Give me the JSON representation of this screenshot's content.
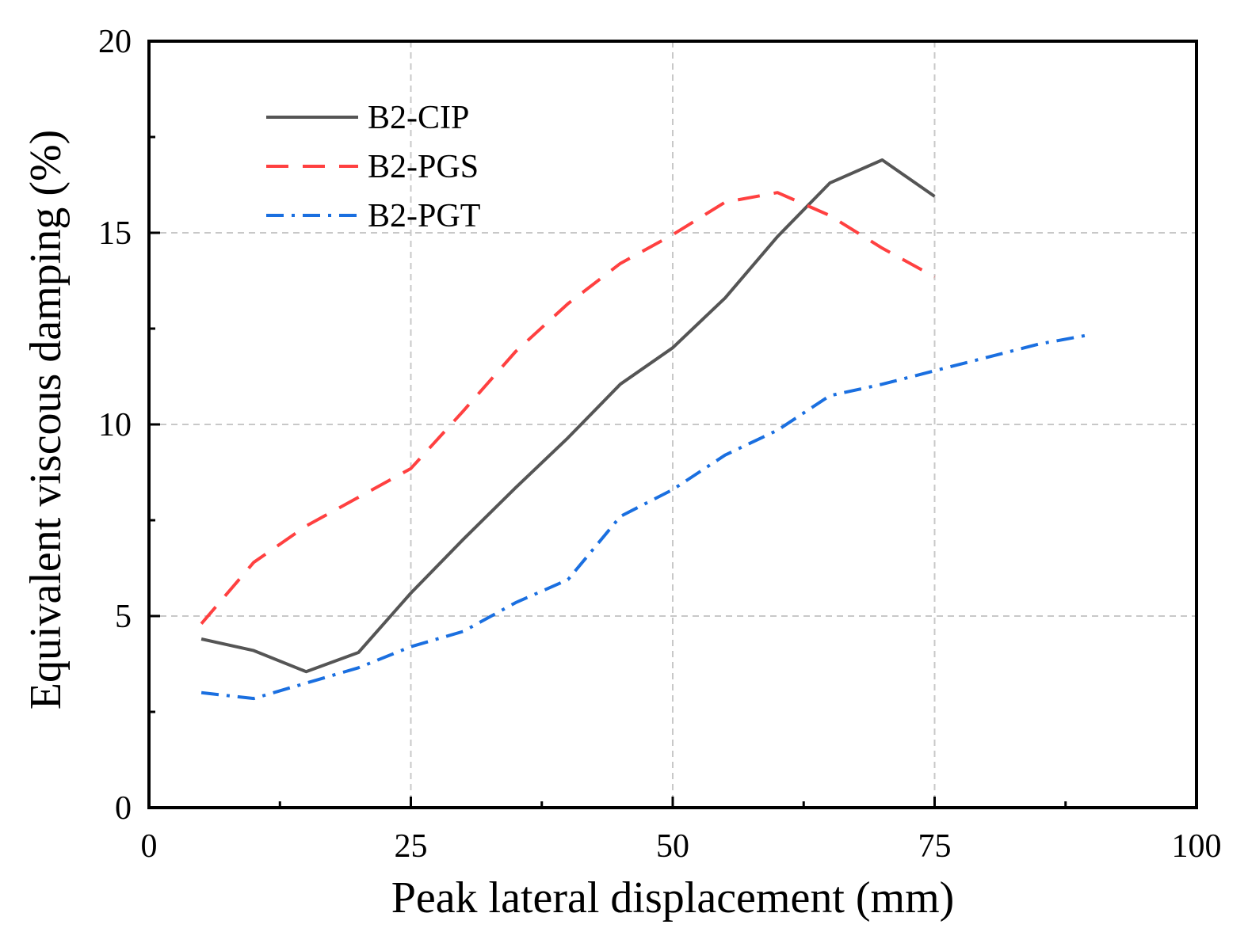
{
  "chart_data": {
    "type": "line",
    "title": "",
    "xlabel": "Peak lateral displacement (mm)",
    "ylabel": "Equivalent viscous damping (%)",
    "xlim": [
      0,
      100
    ],
    "ylim": [
      0,
      20
    ],
    "xticks": [
      0,
      25,
      50,
      75,
      100
    ],
    "yticks": [
      0,
      5,
      10,
      15,
      20
    ],
    "xtick_labels": [
      "0",
      "25",
      "50",
      "75",
      "100"
    ],
    "ytick_labels": [
      "0",
      "5",
      "10",
      "15",
      "20"
    ],
    "grid": true,
    "legend_position": "top-left",
    "series": [
      {
        "name": "B2-CIP",
        "color": "#555555",
        "style": "solid",
        "x": [
          5,
          10,
          15,
          20,
          25,
          30,
          35,
          40,
          45,
          50,
          55,
          60,
          65,
          70,
          75
        ],
        "y": [
          4.4,
          4.1,
          3.55,
          4.05,
          5.6,
          7.0,
          8.35,
          9.65,
          11.05,
          12.0,
          13.3,
          14.9,
          16.3,
          16.9,
          15.95
        ]
      },
      {
        "name": "B2-PGS",
        "color": "#ff4040",
        "style": "dashed",
        "x": [
          5,
          10,
          15,
          20,
          25,
          30,
          35,
          40,
          45,
          50,
          55,
          60,
          65,
          70,
          75
        ],
        "y": [
          4.8,
          6.4,
          7.35,
          8.1,
          8.85,
          10.35,
          11.9,
          13.15,
          14.2,
          14.95,
          15.8,
          16.05,
          15.45,
          14.6,
          13.85
        ]
      },
      {
        "name": "B2-PGT",
        "color": "#1a6fe0",
        "style": "dashdot",
        "x": [
          5,
          10,
          15,
          20,
          25,
          30,
          35,
          40,
          45,
          50,
          55,
          60,
          65,
          70,
          75,
          80,
          85,
          90
        ],
        "y": [
          3.0,
          2.85,
          3.25,
          3.65,
          4.2,
          4.6,
          5.35,
          5.95,
          7.6,
          8.3,
          9.2,
          9.85,
          10.75,
          11.05,
          11.4,
          11.75,
          12.1,
          12.35
        ]
      }
    ]
  }
}
